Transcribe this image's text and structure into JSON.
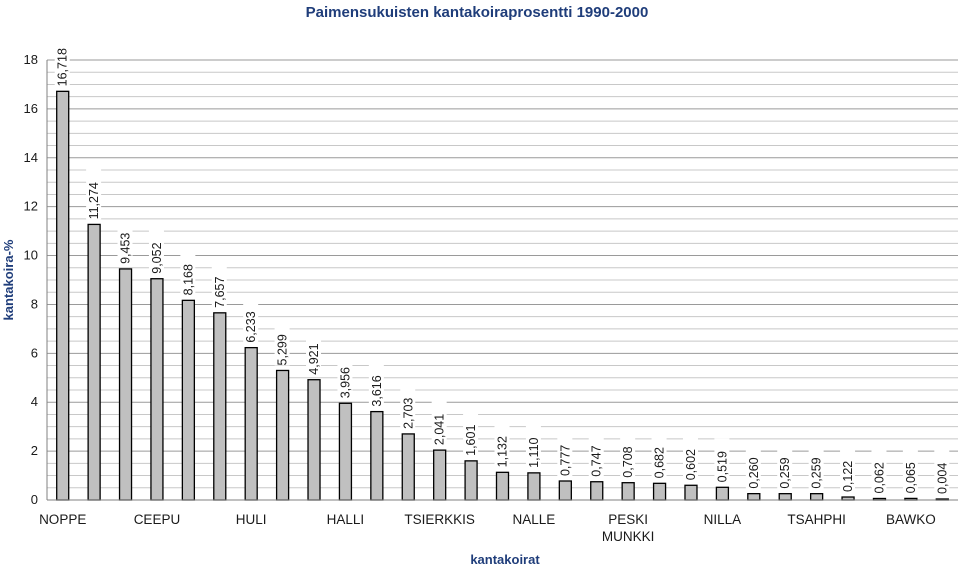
{
  "chart_data": {
    "type": "bar",
    "title": "Paimensukuisten kantakoiraprosentti 1990-2000",
    "xlabel": "kantakoirat",
    "ylabel": "kantakoira-%",
    "ylim": [
      0,
      18
    ],
    "yticks": [
      "0",
      "2",
      "4",
      "6",
      "8",
      "10",
      "12",
      "14",
      "16",
      "18"
    ],
    "grid_step": 0.5,
    "bar_color": "#c0c0c0",
    "values": [
      16.718,
      11.274,
      9.453,
      9.052,
      8.168,
      7.657,
      6.233,
      5.299,
      4.921,
      3.956,
      3.616,
      2.703,
      2.041,
      1.601,
      1.132,
      1.11,
      0.777,
      0.747,
      0.708,
      0.682,
      0.602,
      0.519,
      0.26,
      0.259,
      0.259,
      0.122,
      0.062,
      0.065,
      0.004
    ],
    "value_labels": [
      "16,718",
      "11,274",
      "9,453",
      "9,052",
      "8,168",
      "7,657",
      "6,233",
      "5,299",
      "4,921",
      "3,956",
      "3,616",
      "2,703",
      "2,041",
      "1,601",
      "1,132",
      "1,110",
      "0,777",
      "0,747",
      "0,708",
      "0,682",
      "0,602",
      "0,519",
      "0,260",
      "0,259",
      "0,259",
      "0,122",
      "0,062",
      "0,065",
      "0,004"
    ],
    "category_labels": [
      {
        "index": 0,
        "lines": [
          "NOPPE"
        ]
      },
      {
        "index": 3,
        "lines": [
          "CEEPU"
        ]
      },
      {
        "index": 6,
        "lines": [
          "HULI"
        ]
      },
      {
        "index": 9,
        "lines": [
          "HALLI"
        ]
      },
      {
        "index": 12,
        "lines": [
          "TSIERKKIS"
        ]
      },
      {
        "index": 15,
        "lines": [
          "NALLE"
        ]
      },
      {
        "index": 18,
        "lines": [
          "PESKI",
          "MUNKKI"
        ]
      },
      {
        "index": 21,
        "lines": [
          "NILLA"
        ]
      },
      {
        "index": 24,
        "lines": [
          "TSAHPHI"
        ]
      },
      {
        "index": 27,
        "lines": [
          "BAWKO"
        ]
      }
    ]
  }
}
